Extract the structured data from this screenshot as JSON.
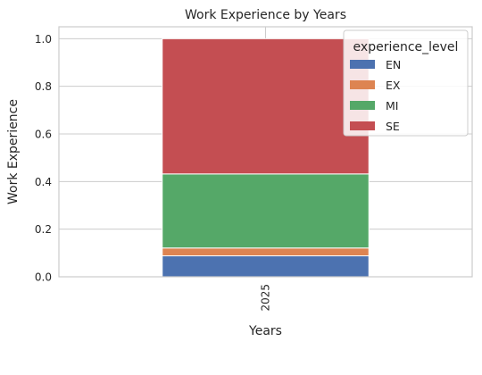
{
  "chart_data": {
    "type": "bar",
    "stacked": true,
    "title": "Work Experience by Years",
    "xlabel": "Years",
    "ylabel": "Work Experience",
    "categories": [
      "2025"
    ],
    "ylim": [
      0,
      1.05
    ],
    "yticks": [
      "0.0",
      "0.2",
      "0.4",
      "0.6",
      "0.8",
      "1.0"
    ],
    "grid": true,
    "legend": {
      "title": "experience_level",
      "placement": "top-right"
    },
    "series": [
      {
        "name": "EN",
        "values": [
          0.088
        ],
        "color": "#4c72b0"
      },
      {
        "name": "EX",
        "values": [
          0.033
        ],
        "color": "#dd8452"
      },
      {
        "name": "MI",
        "values": [
          0.311
        ],
        "color": "#55a868"
      },
      {
        "name": "SE",
        "values": [
          0.568
        ],
        "color": "#c44e52"
      }
    ]
  }
}
